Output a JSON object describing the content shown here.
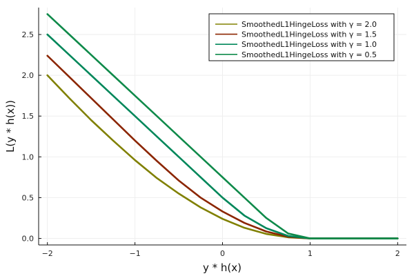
{
  "chart_data": {
    "type": "line",
    "xlabel": "y * h(x)",
    "ylabel": "L(y * h(x))",
    "xlim": [
      -2.1,
      2.1
    ],
    "ylim": [
      -0.08,
      2.83
    ],
    "xticks": [
      -2,
      -1,
      0,
      1,
      2
    ],
    "xtick_labels": [
      "−2",
      "−1",
      "0",
      "1",
      "2"
    ],
    "yticks": [
      0.0,
      0.5,
      1.0,
      1.5,
      2.0,
      2.5
    ],
    "ytick_labels": [
      "0.0",
      "0.5",
      "1.0",
      "1.5",
      "2.0",
      "2.5"
    ],
    "grid": true,
    "legend_position": "top-right",
    "x": [
      -2.0,
      -1.75,
      -1.5,
      -1.25,
      -1.0,
      -0.75,
      -0.5,
      -0.25,
      0.0,
      0.25,
      0.5,
      0.75,
      1.0,
      1.25,
      1.5,
      1.75,
      2.0
    ],
    "series": [
      {
        "name": "SmoothedL1HingeLoss with γ = 2.0",
        "color": "#808000",
        "values": [
          2.0,
          1.72,
          1.45,
          1.2,
          0.96,
          0.74,
          0.55,
          0.38,
          0.24,
          0.13,
          0.055,
          0.014,
          0.0,
          0.0,
          0.0,
          0.0,
          0.0
        ]
      },
      {
        "name": "SmoothedL1HingeLoss with γ = 1.5",
        "color": "#8b2500",
        "values": [
          2.24,
          1.98,
          1.72,
          1.46,
          1.2,
          0.95,
          0.71,
          0.5,
          0.33,
          0.19,
          0.085,
          0.02,
          0.0,
          0.0,
          0.0,
          0.0,
          0.0
        ]
      },
      {
        "name": "SmoothedL1HingeLoss with γ = 1.0",
        "color": "#00875a",
        "values": [
          2.5,
          2.25,
          2.0,
          1.75,
          1.5,
          1.25,
          1.0,
          0.75,
          0.5,
          0.28,
          0.125,
          0.03,
          0.0,
          0.0,
          0.0,
          0.0,
          0.0
        ]
      },
      {
        "name": "SmoothedL1HingeLoss with γ = 0.5",
        "color": "#0f8a4a",
        "values": [
          2.75,
          2.5,
          2.25,
          2.0,
          1.75,
          1.5,
          1.25,
          1.0,
          0.75,
          0.5,
          0.25,
          0.06,
          0.0,
          0.0,
          0.0,
          0.0,
          0.0
        ]
      }
    ]
  }
}
